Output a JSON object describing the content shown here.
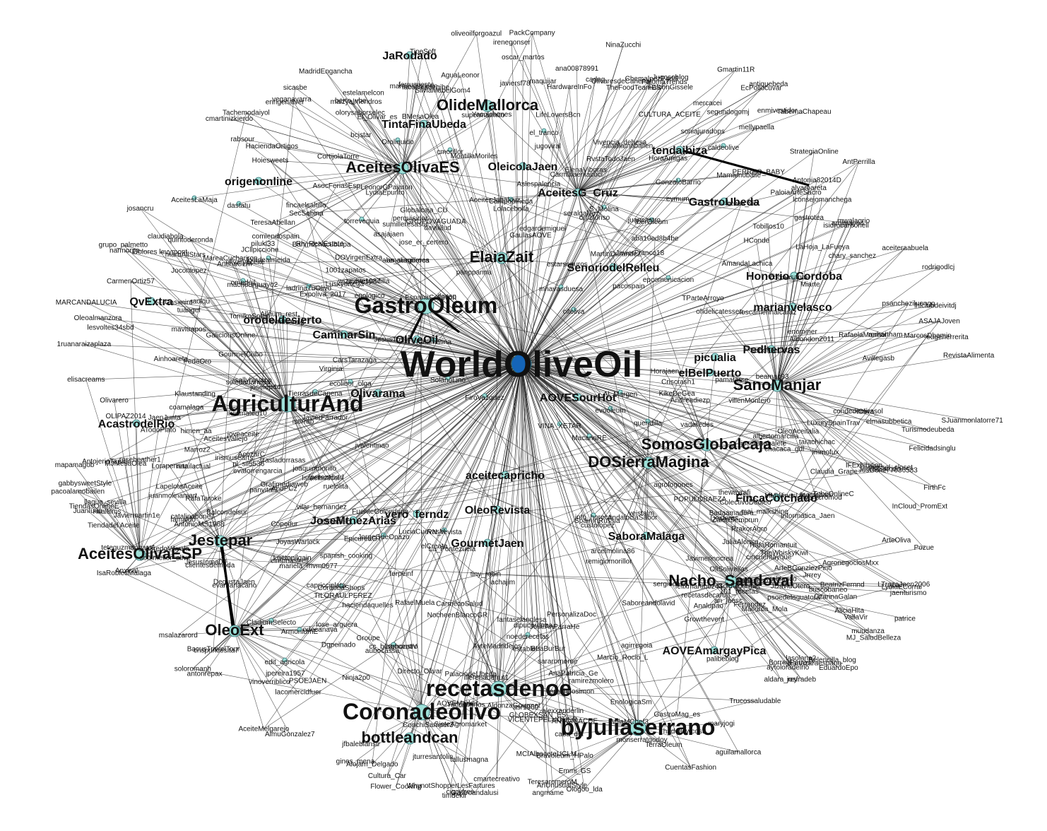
{
  "network": {
    "hub": {
      "id": "WorldOliveOil",
      "color": "#1565b8"
    },
    "node_color": "#9ee0d8",
    "edge_color": "#222222",
    "nodes": [
      {
        "id": "WorldOliveOil",
        "size": "xxl"
      },
      {
        "id": "byjuliaserrano",
        "size": "xl"
      },
      {
        "id": "recetasdenoe",
        "size": "xl"
      },
      {
        "id": "Coronadeolivo",
        "size": "xl"
      },
      {
        "id": "GastroOleum",
        "size": "xl"
      },
      {
        "id": "AgriculturAnd",
        "size": "xl"
      },
      {
        "id": "AceitesOlivaES",
        "size": "l"
      },
      {
        "id": "SanoManjar",
        "size": "l"
      },
      {
        "id": "Nacho_Sandoval",
        "size": "l"
      },
      {
        "id": "DOSierraMagina",
        "size": "l"
      },
      {
        "id": "SomosGlobalcaja",
        "size": "l"
      },
      {
        "id": "ElaiaZait",
        "size": "l"
      },
      {
        "id": "Jestepar",
        "size": "l"
      },
      {
        "id": "AceitesOlivaESP",
        "size": "l"
      },
      {
        "id": "OleoExt",
        "size": "l"
      },
      {
        "id": "OlideMallorca",
        "size": "l"
      },
      {
        "id": "bottleandcan",
        "size": "l"
      },
      {
        "id": "AceitesG_Cruz",
        "size": "m"
      },
      {
        "id": "GastroUbeda",
        "size": "m"
      },
      {
        "id": "tendaibiza",
        "size": "m"
      },
      {
        "id": "OleicolaJaen",
        "size": "m"
      },
      {
        "id": "JaRodado",
        "size": "m"
      },
      {
        "id": "TintaFinaUbeda",
        "size": "m"
      },
      {
        "id": "OliveOil",
        "size": "m"
      },
      {
        "id": "orodeldesierto",
        "size": "m"
      },
      {
        "id": "CaminarSin",
        "size": "m"
      },
      {
        "id": "QvExtra",
        "size": "m"
      },
      {
        "id": "origenonline",
        "size": "m"
      },
      {
        "id": "AcastrodelRio",
        "size": "m"
      },
      {
        "id": "SenoriodelRelleu",
        "size": "m"
      },
      {
        "id": "Pedhervas",
        "size": "m"
      },
      {
        "id": "marianvelasco",
        "size": "m"
      },
      {
        "id": "Honorio_Cordoba",
        "size": "m"
      },
      {
        "id": "FincaCotchado",
        "size": "m"
      },
      {
        "id": "SaboraMalaga",
        "size": "m"
      },
      {
        "id": "JoseMtnezArias",
        "size": "m"
      },
      {
        "id": "OleoRevista",
        "size": "m"
      },
      {
        "id": "vero_ferndz",
        "size": "m"
      },
      {
        "id": "AOVEAmargayPica",
        "size": "m"
      },
      {
        "id": "Olivarama",
        "size": "m"
      },
      {
        "id": "AOVESourHot",
        "size": "m"
      },
      {
        "id": "picualia",
        "size": "m"
      },
      {
        "id": "elBelPuerto",
        "size": "m"
      },
      {
        "id": "GourmetJaen",
        "size": "m"
      },
      {
        "id": "aceitecapricho",
        "size": "m"
      },
      {
        "id": "Campopineda",
        "size": "s"
      },
      {
        "id": "Oroliquido",
        "size": "s"
      },
      {
        "id": "cmorillor",
        "size": "s"
      },
      {
        "id": "el_tranco",
        "size": "s"
      },
      {
        "id": "dastatu",
        "size": "s"
      },
      {
        "id": "torrevequia",
        "size": "s"
      },
      {
        "id": "AceitesLaMaja",
        "size": "s"
      },
      {
        "id": "omedoil",
        "size": "s"
      },
      {
        "id": "citoliva",
        "size": "s"
      },
      {
        "id": "info_horeca",
        "size": "s"
      },
      {
        "id": "queridilla",
        "size": "s"
      },
      {
        "id": "evooleum",
        "size": "s"
      },
      {
        "id": "S_Molina",
        "size": "s"
      },
      {
        "id": "GonzaloBarrio",
        "size": "s"
      },
      {
        "id": "caldeolive",
        "size": "s"
      },
      {
        "id": "IberOleum",
        "size": "s"
      },
      {
        "id": "edit_agricola",
        "size": "s"
      },
      {
        "id": "noederecetas",
        "size": "s"
      },
      {
        "id": "cc_burgocentro",
        "size": "s"
      },
      {
        "id": "CordobaShops",
        "size": "s"
      },
      {
        "id": "JorgeGdeOpazo",
        "size": "s"
      },
      {
        "id": "RN_revista",
        "size": "s"
      },
      {
        "id": "FiroVazquez",
        "size": "s"
      },
      {
        "id": "SolanoLino",
        "size": "s"
      },
      {
        "id": "Kalamatina",
        "size": "s"
      },
      {
        "id": "TierrasdeCanena",
        "size": "s"
      },
      {
        "id": "ecolibor_olga",
        "size": "s"
      },
      {
        "id": "CladiumSelecto",
        "size": "s"
      },
      {
        "id": "ArmoniumE",
        "size": "s"
      },
      {
        "id": "ladrinaTuOlivo",
        "size": "s"
      },
      {
        "id": "loladealmeida",
        "size": "s"
      },
      {
        "id": "MacanoRE",
        "size": "s"
      },
      {
        "id": "VINA_XETAR",
        "size": "s"
      },
      {
        "id": "Al_Margen",
        "size": "s"
      },
      {
        "id": "epcomunicacion",
        "size": "s"
      },
      {
        "id": "mnavasduesa",
        "size": "s"
      }
    ],
    "minor_labels": [
      "ATodoPlato",
      "OliSolivellas",
      "catalinaboneT",
      "LydiaECorral",
      "olivaryaceite",
      "jturresantolin",
      "abs_sumilleres",
      "iluismateo10",
      "sumilleresasor",
      "raolqu",
      "remigiomorillor",
      "rodrigodlcj",
      "Mallorca_Mola",
      "SaborDeOro",
      "JesusInma09",
      "LydiaEpunto",
      "aguilamallorca",
      "panvital3",
      "GaliciousOnline",
      "Trucossaludable",
      "lose_arguera",
      "jaenturismo",
      "TeresaromeroM",
      "AcozarC",
      "piluki33",
      "maquijar",
      "felixmartinez44",
      "joaquinmorillo",
      "TobeOnlineC",
      "olorysaborselec",
      "Albondon2011",
      "AntonioMS1968",
      "teteguzmangarc1",
      "RafaTaroke",
      "AyteMadridejos",
      "Lolacebolla",
      "tallusmagna",
      "TabernaChapeau",
      "aceiteraabuela",
      "javiersf78",
      "CarsTarazaga",
      "aubocassa",
      "ramirezmolero",
      "estelamelcon",
      "Gastroandalusi",
      "LuxurySpainTrav",
      "AnchaCLM",
      "patrice",
      "Hilalfilms",
      "MareaCuchariron",
      "dianazaraespano",
      "AmandaLachica",
      "josemsabalete",
      "ferrusoeste",
      "veganavarra",
      "Emmi_GS",
      "arcelmolina86",
      "agrofogones",
      "lesvoltes34sbd",
      "aba10ed8b4be",
      "JavierFarrador",
      "AOVEMarket",
      "Informatica_Jaen",
      "sararomeroe",
      "seralgalvez",
      "SpainInRussia",
      "aceitespadilla",
      "Cecodrilo",
      "Marroz2",
      "Turismodeubeda",
      "Javiermartin1e",
      "AlmuGonzalez7",
      "SilviaMabelGom4",
      "illerenadefrut1",
      "LTrazaJaen2006",
      "POPULOBAEZA",
      "agirregoia",
      "JosGonz77036583",
      "Balcondelsur",
      "Oleoalmanzora",
      "FedeOro",
      "EduardoEpo",
      "CortijolaTorre",
      "isidrocarbonell",
      "JuanIuuu",
      "Tobillos10",
      "OLIPAZ2014",
      "NinaZucchi",
      "MARCANDALUCIA",
      "rabsour",
      "lperezabad",
      "Avillegasb",
      "AsocFeriasEsp",
      "oscar_martos",
      "coamalaga",
      "Antonia82014D",
      "olivarecromod",
      "pacoalamobailen",
      "asajajaen",
      "perquisidor",
      "EnologicaSm",
      "La_Pontezuela",
      "RafaelaMarmol",
      "Claudia_Grape",
      "GastroMag_es",
      "Bravoleum_HPalo",
      "Alojam_Delgado",
      "JCllpiccione",
      "juancastro",
      "Dgpeinado",
      "gastrotea",
      "ZaidaSemprun",
      "joveaceite",
      "evamariacano",
      "elCreata",
      "ArteOliva",
      "juanmolinamart",
      "TParteArroyo",
      "JoyasWarlock",
      "FuenteGolondrina",
      "lasolana2",
      "pacospain",
      "GourmetCubo",
      "haciendaquelles",
      "supermarmito",
      "caba_del",
      "AntPerrilla",
      "soloromanh",
      "salaalamobailen",
      "PrakorAgro",
      "aytoloradelrio",
      "josancru",
      "PalaciodeUbeda",
      "RafaelMuela",
      "chary_sanchez",
      "OlivaresdeCanena",
      "SieteAgromarket",
      "BorregParras",
      "mrhartham",
      "Groupe",
      "Casimiro",
      "Ferrandez",
      "mercacei",
      "Ainhoareta",
      "comiendospain",
      "Desferas_",
      "antonrepax",
      "PackCompany",
      "Tiendadel Aceite",
      "Israelbeticol",
      "HConde",
      "establel",
      "laesteban",
      "AceiteMelgarejo",
      "CULTURA_ACEITE",
      "Virginia",
      "Trasladorrasas",
      "AceitesVallejo",
      "GLOBEXSAN_ES",
      "Alleum_rest",
      "quintoderonda",
      "iserrab",
      "iOliva_",
      "jvalentinao",
      "wizzytye1987",
      "RafaRomantuit",
      "AlfredoVAyala",
      "ASAJAJoven",
      "custolopez",
      "antiquebeda",
      "mellypaella",
      "narmorpa",
      "tarachichac",
      "enologico",
      "SecSabina",
      "Cultura_Car",
      "Expoliva_2017",
      "maizyalmendros",
      "OleoAceitalia",
      "101_recetas",
      "MMWinesUK",
      "JaenJunta",
      "1ruanaraizaplaza",
      "TheWhiskyKiwi",
      "Badaamadero",
      "Growthevent",
      "mariasesp",
      "tribianco",
      "jfbalebianstr",
      "LapelotaAceite",
      "lconsejomanchega",
      "vinoverriblico",
      "pl_sil5536",
      "Carmlnaenlacoci",
      "TeresaAbellan",
      "llagua_sevilla",
      "psoedelaguatora",
      "Copedur",
      "cadeg",
      "monserratgodoy",
      "JDavidOtero",
      "GaulasAOVE",
      "elmonastrell",
      "condedemirasol",
      "MontillaMoriles",
      "IFExhibition",
      "famaldo",
      "Felicidadsinglu",
      "sommelier_olive",
      "edgardemiguel",
      "MarcosDhamin",
      "loscamerinalcaraz",
      "Directo_Olivar",
      "amimaye4",
      "teresa_sin",
      "BacusTravelTour",
      "maryjogi",
      "Joconlopez",
      "PSOEJAEN",
      "ArteBGonzlezPino",
      "EpicureaGT",
      "soledadaneda",
      "SJuanmonlatorre71",
      "Bahmdchacubulpa",
      "angmame",
      "MCIAlbaceteUCLM",
      "fincaelsaltillo",
      "JavierFranco18",
      "AndaluciaSabor",
      "irenegonser",
      "EspanaColletion",
      "albertomarcilla",
      "Flower_Cooking",
      "vaderedes",
      "ANTONIACUE",
      "Luskyortega",
      "AldonzaGourmet",
      "Jrrrey",
      "JesusGarrido",
      "manueldezjaen",
      "enominer",
      "alvaroareta",
      "panppanna",
      "an_jaesc",
      "Olivarero",
      "claudiabola",
      "eugeherrerita",
      "JoseAnParraHe",
      "LeonorGPajaron",
      "RvstaTodoJaen",
      "mariela_mvm0677",
      "gines_mena",
      "Horajaen",
      "LarhonstV",
      "Gmartin11R",
      "Aslespalencia",
      "lacomercidfuer",
      "CarmenOrtiz57",
      "TomikoSpain",
      "FalconGissele",
      "segundogomj",
      "El_Olivar_es",
      "InCloud_PromExt",
      "villenMontero",
      "retailactual",
      "spanish_cooking",
      "TILORAULPEREZ",
      "dipucordoba",
      "sergiocb78",
      "TucciMartos",
      "ferpeinf",
      "Globalcaja_CU",
      "ColectivoDeoleo",
      "buscobaneo",
      "Ninja2p0",
      "AgronegociosMxx",
      "EcPollocuvar",
      "DegustaJaen",
      "DOVirgenExtra",
      "LaHoja_LaFueya",
      "asr1960",
      "thewayrafi",
      "Hoiesweets",
      "TerraOleum",
      "TipeSoft",
      "jpereira1957",
      "Dolores levymont",
      "mwalagrio",
      "msalazarord",
      "AguaLeonor",
      "KikeDeGea",
      "CzarinaGalan",
      "RevistaAlimenta",
      "achajim",
      "ElenaViboras",
      "sicasbe",
      "JuliaAlonso",
      "ortizfonso",
      "Belencilla_blog",
      "Jugosoblog",
      "Lorapensar",
      "jose_er_certero",
      "AceitesJabalcuz",
      "josfradeb",
      "jfgesp",
      "MilaMChef3",
      "GoldGourmet",
      "Anxisal",
      "tuangel",
      "jugoviral",
      "CarmecoSalud",
      "Javimerinocrea",
      "Lgetopilgain",
      "JesusTrella",
      "Ologoo_lda",
      "odecanava",
      "enrigenalver",
      "PersonalizaDoc",
      "pamatarse",
      "MartinDurandeZ",
      "vilar_hernandez",
      "marbAllStars",
      "IsaRoblesMalaga",
      "Saboreandolavid",
      "Klaustanding",
      "ChemalpezPadill",
      "TheFoodTeamES",
      "AliciaHita",
      "WhynotShopperLesFartures",
      "cmartinizkierdo",
      "MadridEngancha",
      "hadellowcost",
      "immofux",
      "machourguayo2",
      "PERREO_BABY",
      "NocheenBlancoGR",
      "Analupao",
      "HaciendaOrtigos",
      "ana00878991",
      "GRUPOVAGUADA",
      "Mamamobaile",
      "Vivencia_dehesa",
      "cynthiamlg",
      "evmum",
      "BMesaOlea",
      "VallaVir",
      "Miarte",
      "HoraAmigas",
      "Rh_RealEstate",
      "Grafimediaweb",
      "himen_aa",
      "gabbysweetStyle",
      "oliveoilforgoazul",
      "FirthFc",
      "beamac93",
      "veistalm",
      "estarseguros",
      "irismusearts",
      "psancheziluengo",
      "cincuentayque",
      "ConchiSamper3",
      "mavitrapos",
      "tiny_robin",
      "LifeLoversBcn",
      "VICENTEPELUQUER",
      "bcjstar",
      "BeaBurBur",
      "capricciplata",
      "1001zapatos",
      "chacaca_gdl",
      "cigcyfres",
      "AndPCz",
      "MJMesaOlea",
      "timdekir",
      "mapamagob",
      "ohdelicatessen",
      "lacocinadegibe",
      "Pozue",
      "berto_vbe",
      "cocinasantu",
      "sallyhyvapp",
      "muudanza",
      "AnaPatricia_Ge",
      "Marcio_Rocio_L",
      "elisacreams",
      "Criscrash1",
      "clientesdemoda",
      "fantaselanglesa",
      "roseheather1",
      "joselop44",
      "Tachemodaiyol",
      "BeatrizFernnd",
      "soniajuradops",
      "mitssel_closet",
      "recetasdecarol",
      "daviiillud",
      "Yacolchones",
      "lhlclubdeivitdj",
      "ruelolita",
      "MJ_SaludBelleza",
      "StrategiaOnline",
      "crisprincesita7",
      "evatorrengarcia",
      "fernandosimon",
      "PaloiaArteSacro",
      "aldara_rey",
      "LuciaCuevasM",
      "cmartecreativo",
      "AntojeriaTapas",
      "grupo_palmetto",
      "enmivestidor",
      "PalomaTrends",
      "alexxanderlin",
      "Andreadiezp",
      "TiendasOnlineE",
      "amaliaguroca",
      "elmasubbetica",
      "HardwareInFo",
      "CuentasFashion",
      "AnUnusualStyle",
      "mai_maikshine",
      "palibeblog"
    ]
  }
}
